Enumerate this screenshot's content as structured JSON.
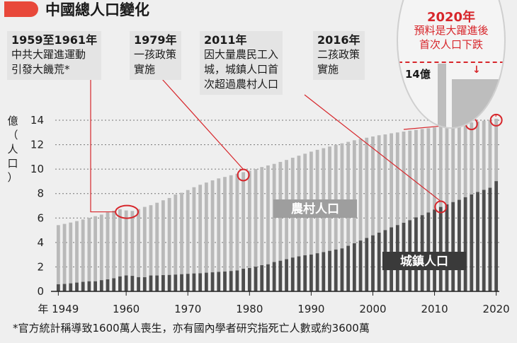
{
  "header": {
    "title": "中國總人口變化"
  },
  "annotations": [
    {
      "year": "1959至1961年",
      "lines": [
        "中共大躍進運動",
        "引發大饑荒*"
      ]
    },
    {
      "year": "1979年",
      "lines": [
        "一孩政策",
        "實施"
      ]
    },
    {
      "year": "2011年",
      "lines": [
        "因大量農民工入",
        "城，城鎮人口首",
        "次超過農村人口"
      ]
    },
    {
      "year": "2016年",
      "lines": [
        "二孩政策",
        "實施"
      ]
    }
  ],
  "callout": {
    "year": "2020年",
    "lines": [
      "預料是大躍進後",
      "首次人口下跌"
    ],
    "level_label": "14億"
  },
  "footnote": "*官方統計稱導致1600萬人喪生，亦有國內學者研究指死亡人數或約3600萬",
  "colors": {
    "rural": "#b9b9b9",
    "urban": "#4d4d4d",
    "accent": "#d7262b",
    "badge": "#e8483a",
    "background": "#efefef"
  },
  "chart_data": {
    "type": "bar",
    "stacked": true,
    "ylabel": "億（人口）",
    "ylim": [
      0,
      14
    ],
    "yticks": [
      0,
      2,
      4,
      6,
      8,
      10,
      12,
      14
    ],
    "x_tick_labels": [
      "年 1949",
      "1960",
      "1970",
      "1980",
      "1990",
      "2000",
      "2010",
      "2020"
    ],
    "x_ticks": [
      1949,
      1960,
      1970,
      1980,
      1990,
      2000,
      2010,
      2020
    ],
    "x": [
      1949,
      1950,
      1951,
      1952,
      1953,
      1954,
      1955,
      1956,
      1957,
      1958,
      1959,
      1960,
      1961,
      1962,
      1963,
      1964,
      1965,
      1966,
      1967,
      1968,
      1969,
      1970,
      1971,
      1972,
      1973,
      1974,
      1975,
      1976,
      1977,
      1978,
      1979,
      1980,
      1981,
      1982,
      1983,
      1984,
      1985,
      1986,
      1987,
      1988,
      1989,
      1990,
      1991,
      1992,
      1993,
      1994,
      1995,
      1996,
      1997,
      1998,
      1999,
      2000,
      2001,
      2002,
      2003,
      2004,
      2005,
      2006,
      2007,
      2008,
      2009,
      2010,
      2011,
      2012,
      2013,
      2014,
      2015,
      2016,
      2017,
      2018,
      2019,
      2020
    ],
    "series": [
      {
        "name": "城鎮人口",
        "values": [
          0.58,
          0.61,
          0.66,
          0.72,
          0.78,
          0.83,
          0.83,
          0.92,
          0.99,
          1.07,
          1.23,
          1.31,
          1.27,
          1.17,
          1.16,
          1.3,
          1.3,
          1.33,
          1.35,
          1.38,
          1.41,
          1.44,
          1.47,
          1.49,
          1.53,
          1.56,
          1.6,
          1.63,
          1.67,
          1.72,
          1.85,
          1.91,
          2.02,
          2.15,
          2.22,
          2.4,
          2.51,
          2.64,
          2.77,
          2.87,
          2.95,
          3.02,
          3.12,
          3.22,
          3.32,
          3.43,
          3.52,
          3.73,
          3.94,
          4.16,
          4.37,
          4.59,
          4.81,
          5.02,
          5.24,
          5.43,
          5.62,
          5.83,
          6.06,
          6.24,
          6.45,
          6.7,
          6.91,
          7.12,
          7.31,
          7.49,
          7.71,
          7.93,
          8.13,
          8.31,
          8.48,
          9.02
        ]
      },
      {
        "name": "農村人口",
        "values": [
          4.84,
          4.91,
          4.97,
          5.03,
          5.1,
          5.19,
          5.32,
          5.36,
          5.47,
          5.53,
          5.49,
          5.31,
          5.31,
          5.56,
          5.75,
          5.75,
          5.95,
          6.12,
          6.29,
          6.54,
          6.66,
          6.85,
          7.05,
          7.23,
          7.37,
          7.52,
          7.64,
          7.73,
          7.83,
          7.9,
          7.9,
          7.96,
          7.99,
          8.02,
          8.08,
          8.03,
          8.08,
          8.11,
          8.16,
          8.23,
          8.31,
          8.41,
          8.46,
          8.49,
          8.53,
          8.56,
          8.59,
          8.5,
          8.42,
          8.32,
          8.2,
          8.08,
          7.96,
          7.82,
          7.69,
          7.57,
          7.45,
          7.32,
          7.15,
          7.04,
          6.89,
          6.71,
          6.56,
          6.42,
          6.3,
          6.19,
          6.03,
          5.89,
          5.77,
          5.65,
          5.52,
          5.1
        ]
      }
    ],
    "bar_labels": {
      "rural": "農村人口",
      "urban": "城鎮人口"
    },
    "highlight_years": [
      1960,
      1979,
      2011,
      2016,
      2020
    ]
  }
}
